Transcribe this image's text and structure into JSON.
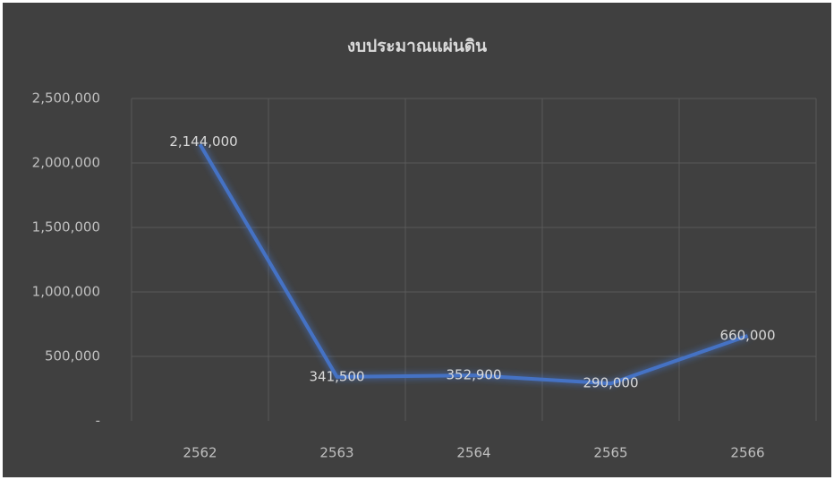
{
  "chart_data": {
    "type": "line",
    "title": "งบประมาณแผ่นดิน",
    "categories": [
      "2562",
      "2563",
      "2564",
      "2565",
      "2566"
    ],
    "series": [
      {
        "name": "งบประมาณแผ่นดิน",
        "color": "#4472c4",
        "values": [
          2144000,
          341500,
          352900,
          290000,
          660000
        ],
        "value_labels": [
          "2,144,000",
          "341,500",
          "352,900",
          "290,000",
          "660,000"
        ]
      }
    ],
    "ylim": [
      0,
      2500000
    ],
    "yticks": [
      {
        "value": 0,
        "label": "-"
      },
      {
        "value": 500000,
        "label": "500,000"
      },
      {
        "value": 1000000,
        "label": "1,000,000"
      },
      {
        "value": 1500000,
        "label": "1,500,000"
      },
      {
        "value": 2000000,
        "label": "2,000,000"
      },
      {
        "value": 2500000,
        "label": "2,500,000"
      }
    ],
    "grid": true
  }
}
